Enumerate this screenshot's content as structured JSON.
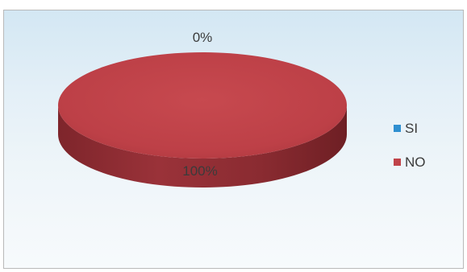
{
  "chart_data": {
    "type": "pie",
    "style": "3d",
    "title": "",
    "categories": [
      "SI",
      "NO"
    ],
    "values": [
      0,
      100
    ],
    "data_labels": [
      "0%",
      "100%"
    ],
    "series": [
      {
        "name": "SI",
        "value": 0,
        "label": "0%",
        "color": "#2f8fd0"
      },
      {
        "name": "NO",
        "value": 100,
        "label": "100%",
        "color": "#c0434a",
        "side_color": "#8c2d33"
      }
    ],
    "legend": {
      "position": "right",
      "items": [
        {
          "label": "SI",
          "color": "#2f8fd0"
        },
        {
          "label": "NO",
          "color": "#c0434a"
        }
      ]
    }
  }
}
